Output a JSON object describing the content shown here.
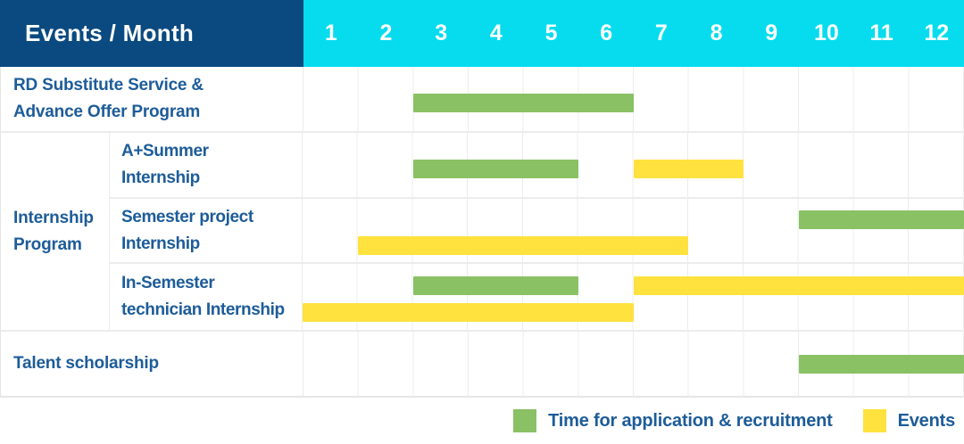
{
  "header": {
    "title": "Events / Month"
  },
  "chart_data": {
    "type": "bar",
    "subtype": "gantt-timeline",
    "title": "Events / Month",
    "x_axis_unit": "month",
    "x_range": [
      1,
      12
    ],
    "months": [
      "1",
      "2",
      "3",
      "4",
      "5",
      "6",
      "7",
      "8",
      "9",
      "10",
      "11",
      "12"
    ],
    "colors": {
      "recruitment": "#8ac164",
      "events": "#ffe23e",
      "header_navy": "#0a4a80",
      "header_cyan": "#06dcee",
      "label_blue": "#1d5c99"
    },
    "group_label": "Internship\nProgram",
    "rows": [
      {
        "label": "RD Substitute Service &\nAdvance Offer Program",
        "lanes": [
          {
            "bars": [
              {
                "kind": "recruitment",
                "start_month": 3,
                "end_month": 6
              }
            ]
          }
        ]
      },
      {
        "label": "A+Summer\nInternship",
        "group": "Internship Program",
        "lanes": [
          {
            "bars": [
              {
                "kind": "recruitment",
                "start_month": 3,
                "end_month": 5
              },
              {
                "kind": "events",
                "start_month": 7,
                "end_month": 8
              }
            ]
          }
        ]
      },
      {
        "label": "Semester project\nInternship",
        "group": "Internship Program",
        "lanes": [
          {
            "bars": [
              {
                "kind": "recruitment",
                "start_month": 10,
                "end_month": 12
              }
            ]
          },
          {
            "bars": [
              {
                "kind": "events",
                "start_month": 2,
                "end_month": 7
              }
            ]
          }
        ]
      },
      {
        "label": "In-Semester\ntechnician Internship",
        "group": "Internship Program",
        "lanes": [
          {
            "bars": [
              {
                "kind": "recruitment",
                "start_month": 3,
                "end_month": 5
              },
              {
                "kind": "events",
                "start_month": 7,
                "end_month": 12
              }
            ]
          },
          {
            "bars": [
              {
                "kind": "events",
                "start_month": 1,
                "end_month": 6
              }
            ]
          }
        ]
      },
      {
        "label": "Talent scholarship",
        "lanes": [
          {
            "bars": [
              {
                "kind": "recruitment",
                "start_month": 10,
                "end_month": 12
              }
            ]
          }
        ]
      }
    ],
    "legend": [
      {
        "kind": "recruitment",
        "label": "Time for application & recruitment"
      },
      {
        "kind": "events",
        "label": "Events"
      }
    ],
    "legend_position": "bottom-right",
    "grid": true
  }
}
